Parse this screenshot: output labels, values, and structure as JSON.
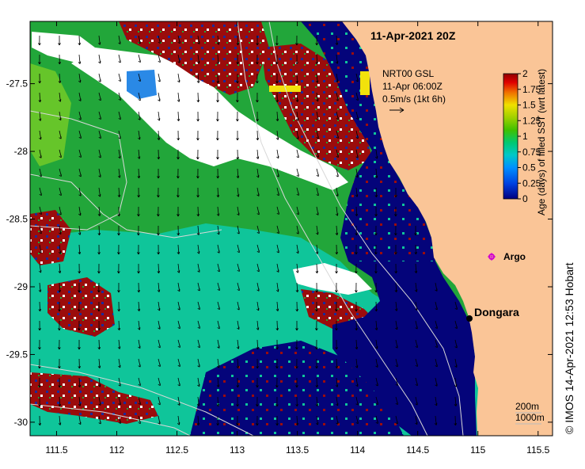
{
  "title": "11-Apr-2021 20Z",
  "credit": "© IMOS 14-Apr-2021 12:53 Hobart",
  "current_legend": {
    "line1": "NRT00 GSL",
    "line2": "11-Apr 06:00Z",
    "line3": "0.5m/s (1kt 6h)"
  },
  "places": [
    {
      "name": "Dongara",
      "marker": "black-dot",
      "lon": 114.93,
      "lat": -29.25
    },
    {
      "name": "Argo",
      "marker": "magenta-star-symbol",
      "lon": 115.12,
      "lat": -28.82
    }
  ],
  "depth_contours": {
    "label_200": "200m",
    "label_1000": "1000m"
  },
  "axes": {
    "lon_ticks": [
      "111.5",
      "112",
      "112.5",
      "113",
      "113.5",
      "114",
      "114.5",
      "115",
      "115.5"
    ],
    "lat_ticks": [
      "-27.5",
      "-28",
      "-28.5",
      "-29",
      "-29.5",
      "-30"
    ],
    "lon_range": [
      111.28,
      115.62
    ],
    "lat_range": [
      -30.1,
      -27.04
    ]
  },
  "colorbar": {
    "label": "Age (days) of filled SST (wrt latest)",
    "tick_labels": [
      "0",
      "0.25",
      "0.5",
      "0.75",
      "1",
      "1.25",
      "1.5",
      "1.75",
      "2"
    ],
    "range": [
      0,
      2
    ],
    "colors": [
      "#000080",
      "#0050e0",
      "#00b4ff",
      "#00c8a0",
      "#20c040",
      "#78d000",
      "#e0e000",
      "#e08000",
      "#e00000",
      "#980000"
    ]
  },
  "colors": {
    "land": "#fac597",
    "no_data": "#ffffff",
    "age_0": "#04047a",
    "age_0_75": "#0fc59a",
    "age_1": "#22a63a",
    "age_1_25": "#66c52a",
    "age_2": "#9b0c0c",
    "age_0_25": "#1239c8",
    "age_0_5": "#2a89e6",
    "age_1_5": "#f2e20c"
  }
}
